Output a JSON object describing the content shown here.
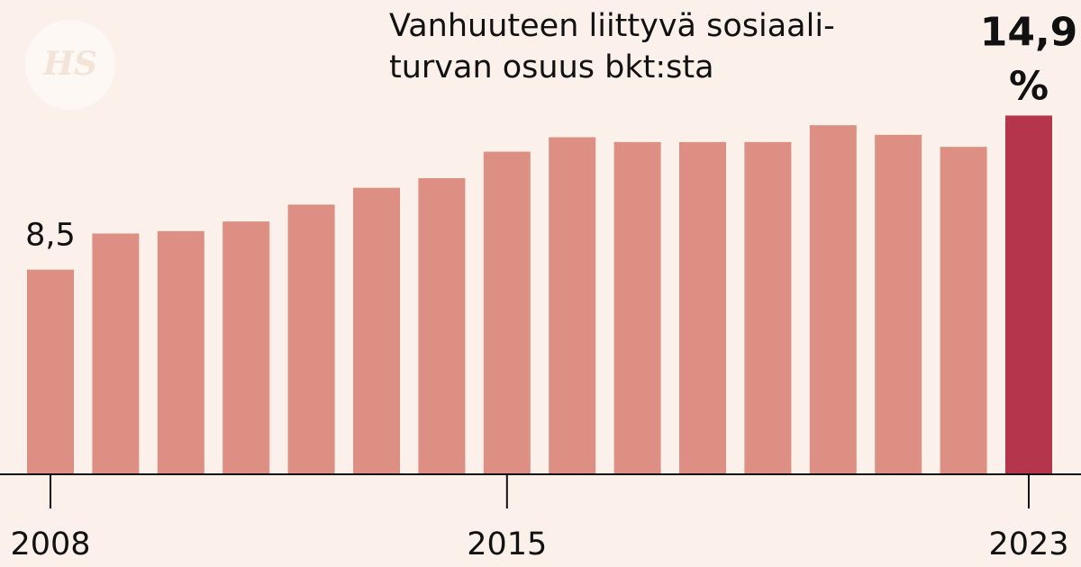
{
  "logo": "HS",
  "chart_data": {
    "type": "bar",
    "title": [
      "Vanhuuteen liittyvä sosiaali-",
      "turvan osuus bkt:sta"
    ],
    "categories": [
      "2008",
      null,
      null,
      null,
      null,
      null,
      null,
      "2015",
      null,
      null,
      null,
      null,
      null,
      null,
      null,
      "2023"
    ],
    "values": [
      8.5,
      10.0,
      10.1,
      10.5,
      11.2,
      11.9,
      12.3,
      13.4,
      14.0,
      13.8,
      13.8,
      13.8,
      14.5,
      14.1,
      13.6,
      14.9
    ],
    "value_labels": [
      "8,5",
      null,
      null,
      null,
      null,
      null,
      null,
      null,
      null,
      null,
      null,
      null,
      null,
      null,
      null,
      "14,9 %"
    ],
    "color": "#dc8f82",
    "colors": [
      "#dc8f82",
      "#dc8f82",
      "#dc8f82",
      "#dc8f82",
      "#dc8f82",
      "#dc8f82",
      "#dc8f82",
      "#dc8f82",
      "#dc8f82",
      "#dc8f82",
      "#dc8f82",
      "#dc8f82",
      "#dc8f82",
      "#dc8f82",
      "#dc8f82",
      "#b5354d"
    ],
    "ylim": [
      0,
      19.7
    ]
  }
}
